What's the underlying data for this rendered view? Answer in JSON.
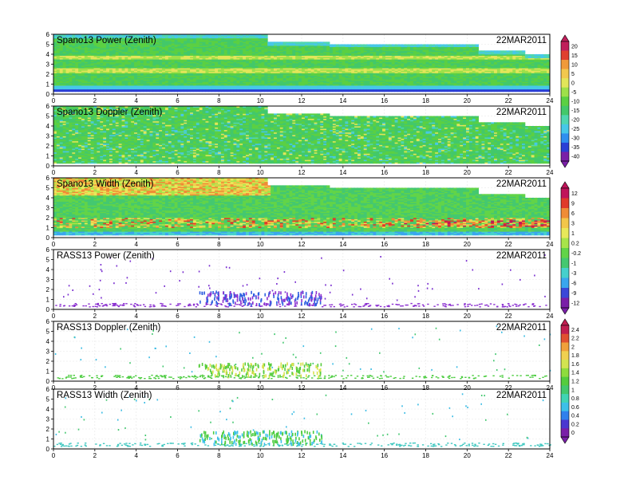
{
  "date_label": "22MAR2011",
  "x_ticks": [
    "0",
    "2",
    "4",
    "6",
    "8",
    "10",
    "12",
    "14",
    "16",
    "18",
    "20",
    "22",
    "24"
  ],
  "y_ticks": [
    "0",
    "1",
    "2",
    "3",
    "4",
    "5",
    "6"
  ],
  "colorbars": [
    {
      "id": "power",
      "labels": [
        "20",
        "15",
        "10",
        "5",
        "0",
        "-5",
        "-10",
        "-15",
        "-20",
        "-25",
        "-30",
        "-35",
        "-40"
      ]
    },
    {
      "id": "width",
      "labels": [
        "12",
        "9",
        "6",
        "3",
        "1",
        "0.2",
        "-0.2",
        "-1",
        "-3",
        "-6",
        "-9",
        "-12"
      ]
    },
    {
      "id": "rass",
      "labels": [
        "2.4",
        "2.2",
        "2",
        "1.8",
        "1.6",
        "1.4",
        "1.2",
        "1",
        "0.8",
        "0.6",
        "0.4",
        "0.2",
        "0"
      ]
    }
  ],
  "chart_data": [
    {
      "type": "heatmap",
      "title": "Spano13 Power (Zenith)",
      "x_range": [
        0,
        24
      ],
      "y_range": [
        0,
        6
      ],
      "colorbar": "power"
    },
    {
      "type": "heatmap",
      "title": "Spano13 Doppler (Zenith)",
      "x_range": [
        0,
        24
      ],
      "y_range": [
        0,
        6
      ],
      "colorbar": "power"
    },
    {
      "type": "heatmap",
      "title": "Spano13 Width (Zenith)",
      "x_range": [
        0,
        24
      ],
      "y_range": [
        0,
        6
      ],
      "colorbar": "width"
    },
    {
      "type": "scatter",
      "title": "RASS13 Power (Zenith)",
      "x_range": [
        0,
        24
      ],
      "y_range": [
        0,
        6
      ],
      "colorbar": "width"
    },
    {
      "type": "scatter",
      "title": "RASS13 Doppler (Zenith)",
      "x_range": [
        0,
        24
      ],
      "y_range": [
        0,
        6
      ],
      "colorbar": "rass"
    },
    {
      "type": "scatter",
      "title": "RASS13 Width (Zenith)",
      "x_range": [
        0,
        24
      ],
      "y_range": [
        0,
        6
      ],
      "colorbar": "rass"
    }
  ]
}
